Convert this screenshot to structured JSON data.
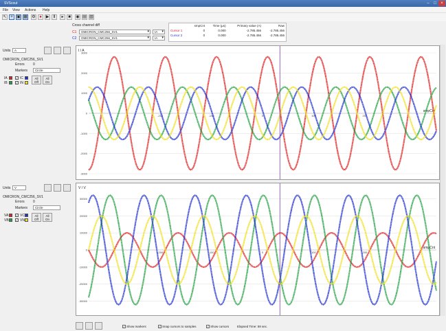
{
  "window": {
    "title": "SVScout"
  },
  "menu": [
    "File",
    "View",
    "Actions",
    "Help"
  ],
  "cursor_panel": {
    "label": "Cross channel diff",
    "c1_label": "C1",
    "c2_label": "C2",
    "c1_value": "OMICRON_CMC256_SV1",
    "c2_value": "OMICRON_CMC256_SV1",
    "c1_channel": "IA",
    "c2_channel": "IA"
  },
  "cursor_table": {
    "headers": [
      "",
      "smpCnt",
      "Time (µs)",
      "Primary value (A)",
      "Raw"
    ],
    "rows": [
      {
        "name": "Cursor 1",
        "smpCnt": "0",
        "time": "0.000",
        "primary": "-2.785.456",
        "raw": "-2.785.456"
      },
      {
        "name": "Cursor 2",
        "smpCnt": "0",
        "time": "0.000",
        "primary": "-2.785.456",
        "raw": "-2.785.456"
      }
    ]
  },
  "panels": [
    {
      "units_label": "Units",
      "units_value": "A",
      "source": "OMICRON_CMC256_SV1",
      "errors_label": "Errors",
      "errors_value": "0",
      "markers_label": "Markers",
      "markers_value": "Circle",
      "channels": [
        {
          "name": "IA",
          "color": "#e02020",
          "checked": true
        },
        {
          "name": "IC",
          "color": "#2030d0",
          "checked": true
        },
        {
          "name": "IB",
          "color": "#20a040",
          "checked": false
        },
        {
          "name": "IN",
          "color": "#f0e020",
          "checked": true
        }
      ],
      "all_off": "All Off",
      "all_on": "All On",
      "axis_label": "I / A"
    },
    {
      "units_label": "Units",
      "units_value": "V",
      "source": "OMICRON_CMC256_SV1",
      "errors_label": "Errors",
      "errors_value": "0",
      "markers_label": "Markers",
      "markers_value": "Circle",
      "channels": [
        {
          "name": "VA",
          "color": "#e02020",
          "checked": true
        },
        {
          "name": "VC",
          "color": "#2030d0",
          "checked": true
        },
        {
          "name": "VB",
          "color": "#20a040",
          "checked": false
        },
        {
          "name": "VN",
          "color": "#f0e020",
          "checked": true
        }
      ],
      "all_off": "All Off",
      "all_on": "All On",
      "axis_label": "V / V"
    }
  ],
  "chart_data": [
    {
      "type": "line",
      "title": "",
      "xlabel": "smpCnt",
      "ylabel": "I / A",
      "ylim": [
        -3000,
        3000
      ],
      "yticks": [
        -3000,
        -2000,
        -1000,
        0,
        1000,
        2000,
        3000
      ],
      "xticks": [
        -200,
        -100,
        0,
        100,
        200
      ],
      "cycles": 6.8,
      "series": [
        {
          "name": "IA",
          "color": "#e02020",
          "amplitude": 2800,
          "phase_deg": 270
        },
        {
          "name": "IB",
          "color": "#20a040",
          "amplitude": 1300,
          "phase_deg": 150
        },
        {
          "name": "IC",
          "color": "#2030d0",
          "amplitude": 1300,
          "phase_deg": 30
        },
        {
          "name": "IN",
          "color": "#f0e020",
          "amplitude": 1300,
          "phase_deg": 90
        }
      ]
    },
    {
      "type": "line",
      "title": "",
      "xlabel": "smpCnt",
      "ylabel": "V / V",
      "ylim": [
        -35000,
        35000
      ],
      "yticks": [
        -30000,
        -20000,
        -10000,
        0,
        10000,
        20000,
        30000
      ],
      "xticks": [
        -200,
        -100,
        0,
        100,
        200
      ],
      "cycles": 6.8,
      "series": [
        {
          "name": "VA",
          "color": "#e02020",
          "amplitude": 10000,
          "phase_deg": 180
        },
        {
          "name": "VB",
          "color": "#20a040",
          "amplitude": 32000,
          "phase_deg": 300
        },
        {
          "name": "VC",
          "color": "#2030d0",
          "amplitude": 32000,
          "phase_deg": 60
        },
        {
          "name": "VN",
          "color": "#f0e020",
          "amplitude": 20000,
          "phase_deg": 0
        }
      ]
    }
  ],
  "bottom": {
    "show_markers": "Show markers",
    "snap_cursors": "Snap cursors to samples",
    "show_cursors": "Show cursors",
    "elapsed": "Elapsed Time: 59 sec."
  }
}
